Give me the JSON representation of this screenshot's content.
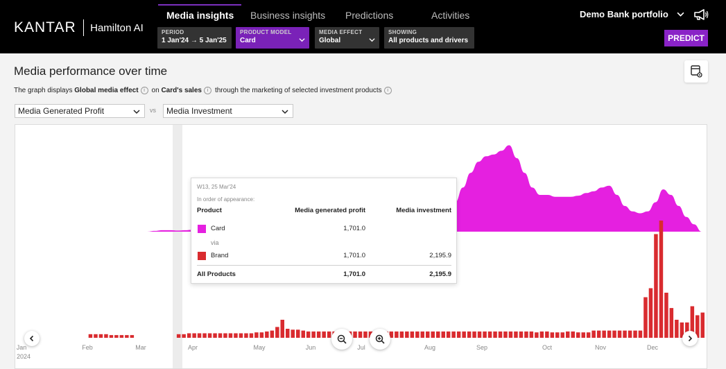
{
  "header": {
    "brand": "KANTAR",
    "product": "Hamilton AI",
    "tabs": [
      {
        "label": "Media insights",
        "active": true
      },
      {
        "label": "Business insights",
        "active": false
      },
      {
        "label": "Predictions",
        "active": false
      },
      {
        "label": "Activities",
        "active": false
      }
    ],
    "filters": {
      "period": {
        "caption": "PERIOD",
        "value": "1 Jan'24 → 5 Jan'25"
      },
      "product_model": {
        "caption": "PRODUCT MODEL",
        "value": "Card"
      },
      "media_effect": {
        "caption": "MEDIA EFFECT",
        "value": "Global"
      },
      "showing": {
        "caption": "SHOWING",
        "value": "All products and drivers"
      }
    },
    "portfolio": "Demo Bank portfolio",
    "predict_label": "PREDICT",
    "accent_color": "#8a23c7"
  },
  "main": {
    "title": "Media performance over time",
    "subtitle": {
      "p1": "The graph displays",
      "effect": "Global media effect",
      "p2": "on",
      "sales": "Card's sales",
      "p3": "through the marketing of selected investment products"
    },
    "metric_left": "Media Generated Profit",
    "vs_label": "vs",
    "metric_right": "Media Investment"
  },
  "chart_data": {
    "type": "area+bar",
    "x_labels": [
      "Jan",
      "Feb",
      "Mar",
      "Apr",
      "May",
      "Jun",
      "Jul",
      "Aug",
      "Sep",
      "Oct",
      "Nov",
      "Dec"
    ],
    "year_label": "2024",
    "series": [
      {
        "name": "Media generated profit (Card)",
        "color": "#e520e0",
        "type": "area",
        "values": [
          0,
          0,
          0,
          0,
          0,
          0,
          0,
          0,
          0,
          0,
          0,
          0,
          2,
          4,
          4,
          3,
          4,
          5,
          6,
          8,
          10,
          12,
          14,
          12,
          8,
          0,
          10,
          40,
          55,
          55,
          55,
          45,
          45,
          45,
          45,
          45,
          45,
          45,
          45,
          45,
          45,
          45,
          45,
          45,
          45,
          45,
          45,
          45,
          45,
          45,
          60,
          80,
          120,
          160,
          190,
          205,
          210,
          220,
          235,
          200,
          160,
          120,
          100,
          100,
          95,
          95,
          95,
          98,
          105,
          110,
          120,
          125,
          100,
          70,
          55,
          50,
          55,
          80,
          115,
          100,
          70,
          40,
          20,
          0
        ]
      },
      {
        "name": "Media investment (Brand)",
        "color": "#d92b2f",
        "type": "bar",
        "values": [
          0,
          0,
          0,
          0,
          0,
          0,
          0,
          0,
          0,
          0,
          0,
          0,
          0,
          0,
          4,
          4,
          4,
          4,
          3,
          3,
          3,
          3,
          3,
          0,
          0,
          0,
          0,
          0,
          0,
          0,
          0,
          4,
          4,
          5,
          5,
          5,
          5,
          5,
          5,
          5,
          5,
          5,
          5,
          5,
          5,
          5,
          6,
          6,
          7,
          8,
          12,
          20,
          10,
          9,
          9,
          8,
          7,
          7,
          7,
          7,
          7,
          7,
          7,
          7,
          7,
          7,
          7,
          7,
          7,
          7,
          7,
          7,
          7,
          7,
          7,
          7,
          7,
          7,
          7,
          7,
          7,
          7,
          7,
          7,
          7,
          7,
          7,
          7,
          7,
          7,
          7,
          7,
          7,
          7,
          7,
          7,
          7,
          7,
          7,
          7,
          6,
          7,
          7,
          6,
          6,
          6,
          7,
          7,
          6,
          6,
          6,
          8,
          8,
          8,
          8,
          8,
          8,
          8,
          8,
          8,
          8,
          45,
          55,
          115,
          130,
          50,
          33,
          20,
          17,
          17,
          35,
          25,
          28
        ]
      }
    ],
    "highlight_week": "W13, 25 Mar'24"
  },
  "tooltip": {
    "week": "W13, 25 Mar'24",
    "order_note": "In order of appearance:",
    "headers": [
      "Product",
      "Media generated profit",
      "Media investment"
    ],
    "rows": [
      {
        "product": "Card",
        "profit": "1,701.0",
        "investment": "",
        "color": "#e520e0"
      },
      {
        "product": "Brand",
        "profit": "1,701.0",
        "investment": "2,195.9",
        "color": "#d92b2f"
      }
    ],
    "via": "via",
    "total": {
      "product": "All Products",
      "profit": "1,701.0",
      "investment": "2,195.9"
    }
  }
}
